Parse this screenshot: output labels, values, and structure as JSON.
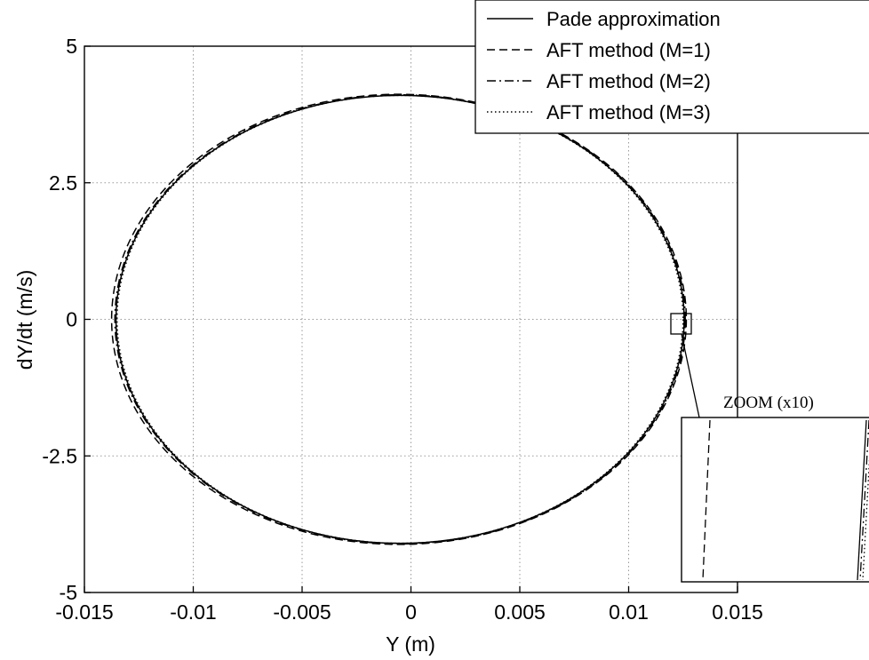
{
  "chart_data": {
    "type": "line",
    "title": "",
    "xlabel": "Y (m)",
    "ylabel": "dY/dt (m/s)",
    "xlim": [
      -0.015,
      0.015
    ],
    "ylim": [
      -5,
      5
    ],
    "xticks": [
      -0.015,
      -0.01,
      -0.005,
      0,
      0.005,
      0.01,
      0.015
    ],
    "xtick_labels": [
      "-0.015",
      "-0.01",
      "-0.005",
      "0",
      "0.005",
      "0.01",
      "0.015"
    ],
    "yticks": [
      5,
      2.5,
      0,
      -2.5,
      -5
    ],
    "ytick_labels": [
      "5",
      "2.5",
      "0",
      "-2.5",
      "-5"
    ],
    "grid": true,
    "legend_position": "top-right",
    "series": [
      {
        "name": "Pade approximation",
        "style": "solid",
        "center_y": -0.0005,
        "half_width": 0.01305,
        "half_height": 4.1
      },
      {
        "name": "AFT method (M=1)",
        "style": "dashed",
        "center_y": -0.00055,
        "half_width": 0.0132,
        "half_height": 4.12
      },
      {
        "name": "AFT method (M=2)",
        "style": "dashdot",
        "center_y": -0.0005,
        "half_width": 0.0131,
        "half_height": 4.11
      },
      {
        "name": "AFT method (M=3)",
        "style": "dotted",
        "center_y": -0.0005,
        "half_width": 0.013,
        "half_height": 4.1
      }
    ],
    "zoom_inset": {
      "label": "ZOOM (x10)",
      "factor": 10,
      "center": [
        0.0125,
        0
      ]
    }
  },
  "colors": {
    "line": "#000000",
    "grid": "#9a9a9a",
    "background": "#ffffff"
  }
}
